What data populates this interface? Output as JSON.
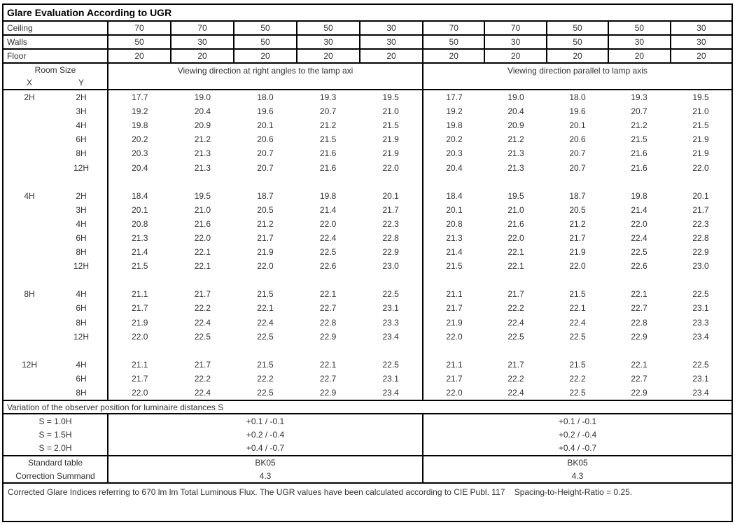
{
  "title": "Glare Evaluation According to UGR",
  "surface_rows": [
    {
      "label": "Ceiling",
      "values": [
        "70",
        "70",
        "50",
        "50",
        "30",
        "70",
        "70",
        "50",
        "50",
        "30"
      ]
    },
    {
      "label": "Walls",
      "values": [
        "50",
        "30",
        "50",
        "30",
        "30",
        "50",
        "30",
        "50",
        "30",
        "30"
      ]
    },
    {
      "label": "Floor",
      "values": [
        "20",
        "20",
        "20",
        "20",
        "20",
        "20",
        "20",
        "20",
        "20",
        "20"
      ]
    }
  ],
  "header": {
    "room_size": "Room Size",
    "x_label": "X",
    "y_label": "Y",
    "left_direction": "Viewing direction at right angles to the lamp axi",
    "right_direction": "Viewing direction parallel to lamp axis"
  },
  "ugr_blocks": [
    {
      "x": "2H",
      "rows": [
        {
          "y": "2H",
          "right_angle": [
            "17.7",
            "19.0",
            "18.0",
            "19.3",
            "19.5"
          ],
          "parallel": [
            "17.7",
            "19.0",
            "18.0",
            "19.3",
            "19.5"
          ]
        },
        {
          "y": "3H",
          "right_angle": [
            "19.2",
            "20.4",
            "19.6",
            "20.7",
            "21.0"
          ],
          "parallel": [
            "19.2",
            "20.4",
            "19.6",
            "20.7",
            "21.0"
          ]
        },
        {
          "y": "4H",
          "right_angle": [
            "19.8",
            "20.9",
            "20.1",
            "21.2",
            "21.5"
          ],
          "parallel": [
            "19.8",
            "20.9",
            "20.1",
            "21.2",
            "21.5"
          ]
        },
        {
          "y": "6H",
          "right_angle": [
            "20.2",
            "21.2",
            "20.6",
            "21.5",
            "21.9"
          ],
          "parallel": [
            "20.2",
            "21.2",
            "20.6",
            "21.5",
            "21.9"
          ]
        },
        {
          "y": "8H",
          "right_angle": [
            "20.3",
            "21.3",
            "20.7",
            "21.6",
            "21.9"
          ],
          "parallel": [
            "20.3",
            "21.3",
            "20.7",
            "21.6",
            "21.9"
          ]
        },
        {
          "y": "12H",
          "right_angle": [
            "20.4",
            "21.3",
            "20.7",
            "21.6",
            "22.0"
          ],
          "parallel": [
            "20.4",
            "21.3",
            "20.7",
            "21.6",
            "22.0"
          ]
        }
      ]
    },
    {
      "x": "4H",
      "rows": [
        {
          "y": "2H",
          "right_angle": [
            "18.4",
            "19.5",
            "18.7",
            "19.8",
            "20.1"
          ],
          "parallel": [
            "18.4",
            "19.5",
            "18.7",
            "19.8",
            "20.1"
          ]
        },
        {
          "y": "3H",
          "right_angle": [
            "20.1",
            "21.0",
            "20.5",
            "21.4",
            "21.7"
          ],
          "parallel": [
            "20.1",
            "21.0",
            "20.5",
            "21.4",
            "21.7"
          ]
        },
        {
          "y": "4H",
          "right_angle": [
            "20.8",
            "21.6",
            "21.2",
            "22.0",
            "22.3"
          ],
          "parallel": [
            "20.8",
            "21.6",
            "21.2",
            "22.0",
            "22.3"
          ]
        },
        {
          "y": "6H",
          "right_angle": [
            "21.3",
            "22.0",
            "21.7",
            "22.4",
            "22.8"
          ],
          "parallel": [
            "21.3",
            "22.0",
            "21.7",
            "22.4",
            "22.8"
          ]
        },
        {
          "y": "8H",
          "right_angle": [
            "21.4",
            "22.1",
            "21.9",
            "22.5",
            "22.9"
          ],
          "parallel": [
            "21.4",
            "22.1",
            "21.9",
            "22.5",
            "22.9"
          ]
        },
        {
          "y": "12H",
          "right_angle": [
            "21.5",
            "22.1",
            "22.0",
            "22.6",
            "23.0"
          ],
          "parallel": [
            "21.5",
            "22.1",
            "22.0",
            "22.6",
            "23.0"
          ]
        }
      ]
    },
    {
      "x": "8H",
      "rows": [
        {
          "y": "4H",
          "right_angle": [
            "21.1",
            "21.7",
            "21.5",
            "22.1",
            "22.5"
          ],
          "parallel": [
            "21.1",
            "21.7",
            "21.5",
            "22.1",
            "22.5"
          ]
        },
        {
          "y": "6H",
          "right_angle": [
            "21.7",
            "22.2",
            "22.1",
            "22.7",
            "23.1"
          ],
          "parallel": [
            "21.7",
            "22.2",
            "22.1",
            "22.7",
            "23.1"
          ]
        },
        {
          "y": "8H",
          "right_angle": [
            "21.9",
            "22.4",
            "22.4",
            "22.8",
            "23.3"
          ],
          "parallel": [
            "21.9",
            "22.4",
            "22.4",
            "22.8",
            "23.3"
          ]
        },
        {
          "y": "12H",
          "right_angle": [
            "22.0",
            "22.5",
            "22.5",
            "22.9",
            "23.4"
          ],
          "parallel": [
            "22.0",
            "22.5",
            "22.5",
            "22.9",
            "23.4"
          ]
        }
      ]
    },
    {
      "x": "12H",
      "rows": [
        {
          "y": "4H",
          "right_angle": [
            "21.1",
            "21.7",
            "21.5",
            "22.1",
            "22.5"
          ],
          "parallel": [
            "21.1",
            "21.7",
            "21.5",
            "22.1",
            "22.5"
          ]
        },
        {
          "y": "6H",
          "right_angle": [
            "21.7",
            "22.2",
            "22.2",
            "22.7",
            "23.1"
          ],
          "parallel": [
            "21.7",
            "22.2",
            "22.2",
            "22.7",
            "23.1"
          ]
        },
        {
          "y": "8H",
          "right_angle": [
            "22.0",
            "22.4",
            "22.5",
            "22.9",
            "23.4"
          ],
          "parallel": [
            "22.0",
            "22.4",
            "22.5",
            "22.9",
            "23.4"
          ]
        }
      ]
    }
  ],
  "variation_title": "Variation of the observer position for luminaire distances S",
  "variation_rows": [
    {
      "label": "S = 1.0H",
      "left": "+0.1 / -0.1",
      "right": "+0.1 / -0.1"
    },
    {
      "label": "S = 1.5H",
      "left": "+0.2 / -0.4",
      "right": "+0.2 / -0.4"
    },
    {
      "label": "S = 2.0H",
      "left": "+0.4 / -0.7",
      "right": "+0.4 / -0.7"
    }
  ],
  "summary_rows": [
    {
      "label": "Standard table",
      "left": "BK05",
      "right": "BK05"
    },
    {
      "label": "Correction Summand",
      "left": "4.3",
      "right": "4.3"
    }
  ],
  "footer": "Corrected Glare Indices referring to 670 lm lm Total Luminous Flux. The UGR values have been calculated according to CIE Publ. 117    Spacing-to-Height-Ratio = 0.25.",
  "colors": {
    "border": "#000000",
    "text": "#323232",
    "background": "#ffffff"
  }
}
